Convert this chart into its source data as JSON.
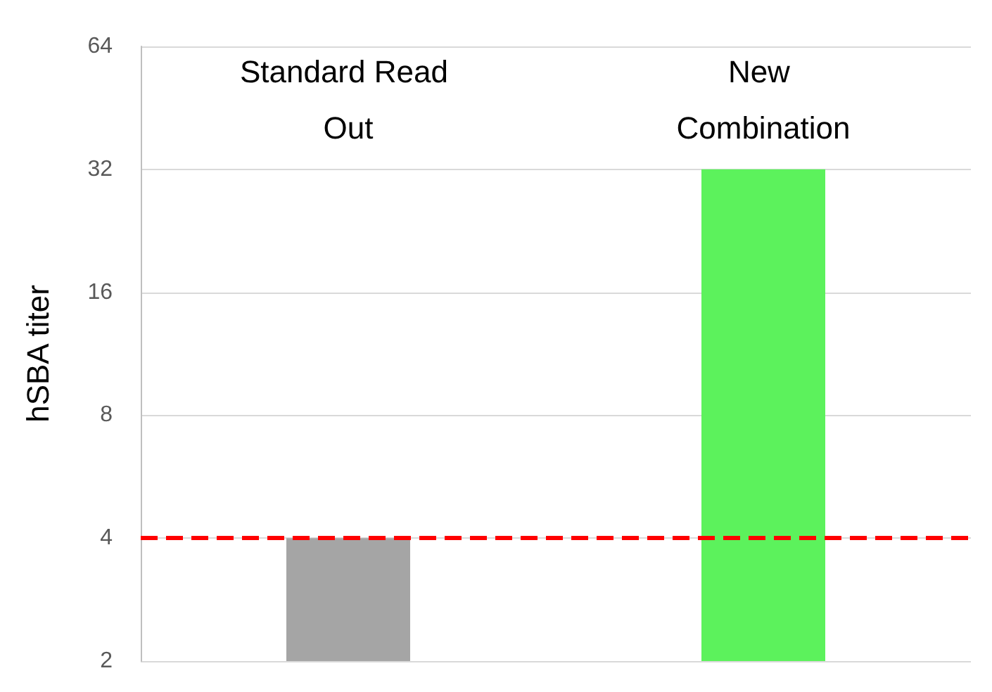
{
  "chart_data": {
    "type": "bar",
    "ylabel": "hSBA titer",
    "categories": [
      "Standard Read Out",
      "New Combination"
    ],
    "values": [
      4,
      32
    ],
    "colors": [
      "#a5a5a5",
      "#5cf25c"
    ],
    "log": true,
    "ylim": [
      2,
      64
    ],
    "yticks": [
      2,
      4,
      8,
      16,
      32,
      64
    ],
    "grid": "y",
    "ref_lines": [
      {
        "axis": "y",
        "value": 4,
        "color": "#ff0000",
        "line_style": "dashed"
      }
    ]
  }
}
